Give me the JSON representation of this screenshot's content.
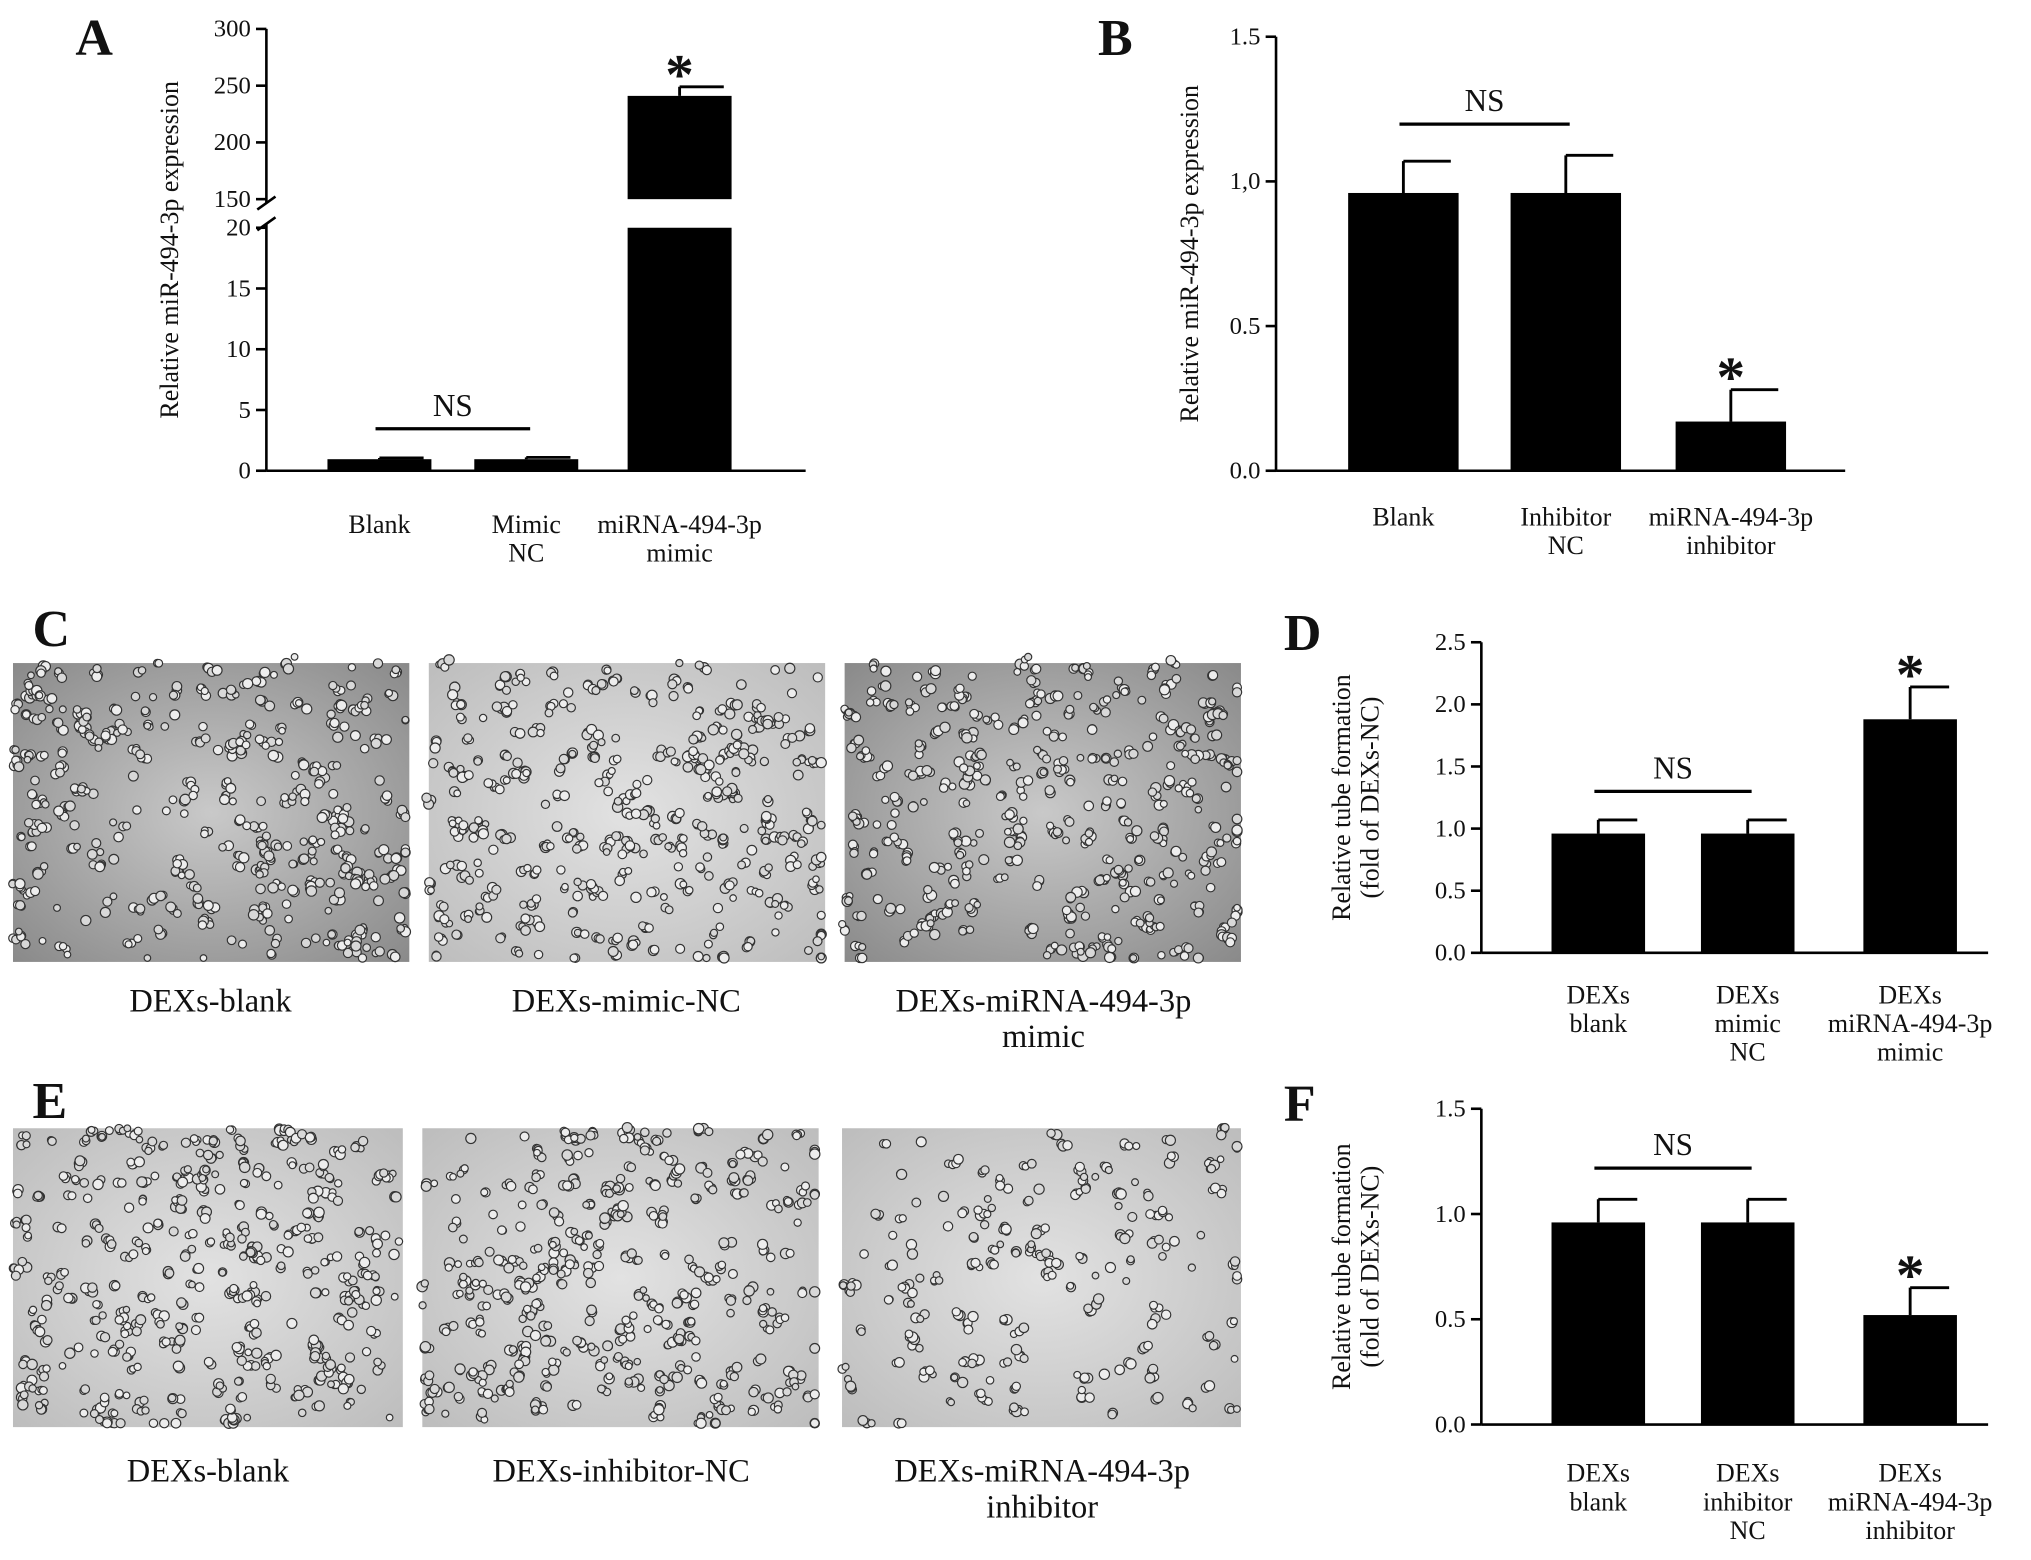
{
  "chart_data": [
    {
      "type": "bar",
      "panel": "A",
      "ylabel": "Relative miR-494-3p expression",
      "categories": [
        "Blank",
        "Mimic\nNC",
        "miRNA-494-3p\nmimic"
      ],
      "values": [
        0.95,
        0.95,
        241
      ],
      "errors": [
        0.1,
        0.15,
        8
      ],
      "color": "#000000",
      "ylim": [
        0,
        300
      ],
      "axis_break": [
        20,
        150
      ],
      "yticks": [
        0,
        5,
        10,
        15,
        20,
        150,
        200,
        250,
        300
      ],
      "annotations": [
        {
          "text": "NS"
        },
        {
          "text": "*"
        }
      ]
    },
    {
      "type": "bar",
      "panel": "B",
      "ylabel": "Relative miR-494-3p expression",
      "categories": [
        "Blank",
        "Inhibitor\nNC",
        "miRNA-494-3p\ninhibitor"
      ],
      "values": [
        0.96,
        0.96,
        0.17
      ],
      "errors": [
        0.11,
        0.13,
        0.11
      ],
      "color": "#000000",
      "ylim": [
        0,
        1.5
      ],
      "yticks": [
        {
          "value": 0,
          "label": "0.0"
        },
        0.5,
        {
          "value": 1,
          "label": "1,0"
        },
        1.5
      ],
      "annotations": [
        {
          "text": "NS"
        },
        {
          "text": "*"
        }
      ]
    },
    {
      "type": "bar",
      "panel": "D",
      "ylabel": "Relative tube formation\n(fold of DEXs-NC)",
      "categories": [
        "DEXs\nblank",
        "DEXs\nmimic\nNC",
        "DEXs\nmiRNA-494-3p\nmimic"
      ],
      "values": [
        0.96,
        0.96,
        1.88
      ],
      "errors": [
        0.11,
        0.11,
        0.26
      ],
      "color": "#000000",
      "ylim": [
        0,
        2.5
      ],
      "yticks": [
        {
          "value": 0,
          "label": "0.0"
        },
        0.5,
        {
          "value": 1,
          "label": "1.0"
        },
        1.5,
        {
          "value": 2,
          "label": "2.0"
        },
        2.5
      ],
      "annotations": [
        {
          "text": "NS"
        },
        {
          "text": "*"
        }
      ]
    },
    {
      "type": "bar",
      "panel": "F",
      "ylabel": "Relative tube formation\n(fold of DEXs-NC)",
      "categories": [
        "DEXs\nblank",
        "DEXs\ninhibitor\nNC",
        "DEXs\nmiRNA-494-3p\ninhibitor"
      ],
      "values": [
        0.96,
        0.96,
        0.52
      ],
      "errors": [
        0.11,
        0.11,
        0.13
      ],
      "color": "#000000",
      "ylim": [
        0,
        1.5
      ],
      "yticks": [
        {
          "value": 0,
          "label": "0.0"
        },
        0.5,
        {
          "value": 1,
          "label": "1.0"
        },
        1.5
      ],
      "annotations": [
        {
          "text": "NS"
        },
        {
          "text": "*"
        }
      ]
    }
  ],
  "image_panels": [
    {
      "panel": "C",
      "captions": [
        "DEXs-blank",
        "DEXs-mimic-NC",
        "DEXs-miRNA-494-3p\nmimic"
      ]
    },
    {
      "panel": "E",
      "captions": [
        "DEXs-blank",
        "DEXs-inhibitor-NC",
        "DEXs-miRNA-494-3p\ninhibitor"
      ]
    }
  ]
}
